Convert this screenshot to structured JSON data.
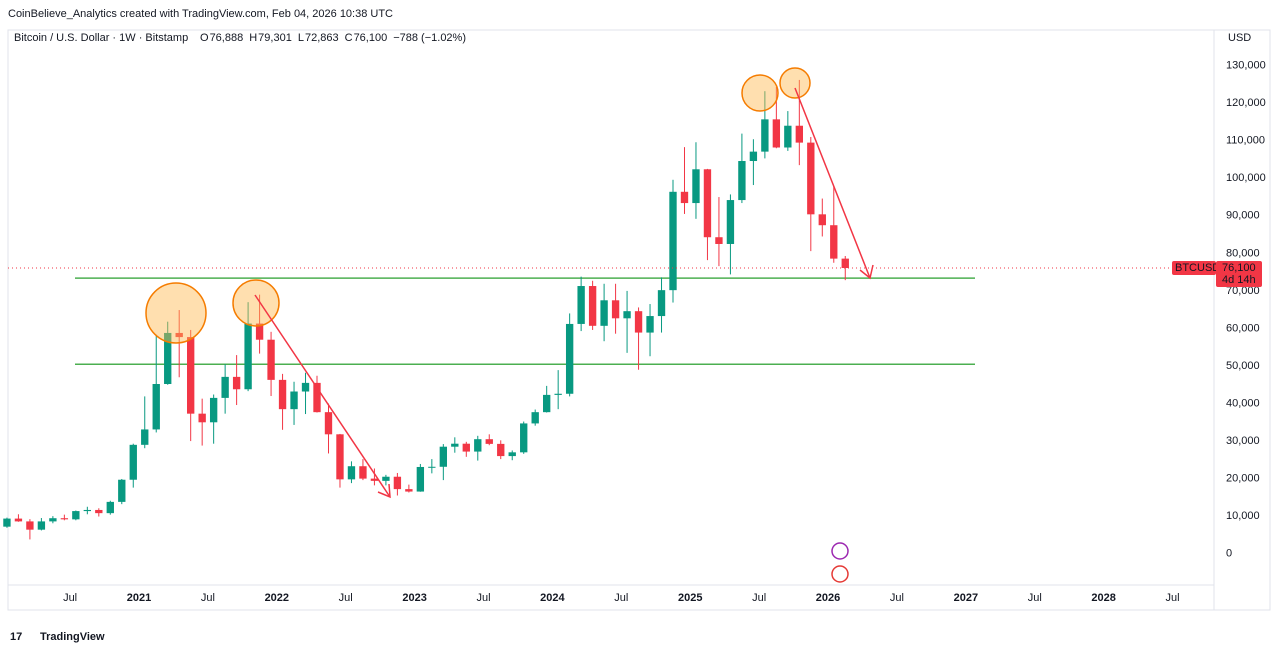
{
  "chart_data": {
    "type": "candlestick",
    "title": "CoinBelieve_Analytics created with TradingView.com, Feb 04, 2026 10:38 UTC",
    "subtitle": "Bitcoin / U.S. Dollar · 1W · Bitstamp",
    "ohlc_header": [
      {
        "key": "O",
        "value": "76,888"
      },
      {
        "key": "H",
        "value": "79,301"
      },
      {
        "key": "L",
        "value": "72,863"
      },
      {
        "key": "C",
        "value": "76,100"
      }
    ],
    "change": "−788 (−1.02%)",
    "currency": "USD",
    "brand": "TradingView",
    "up_color": "#089981",
    "down_color": "#f23645",
    "level_color": "#4caf50",
    "x": [
      "2020-01",
      "2020-02",
      "2020-03",
      "2020-04",
      "2020-05",
      "2020-06",
      "2020-07",
      "2020-08",
      "2020-09",
      "2020-10",
      "2020-11",
      "2020-12",
      "2021-01",
      "2021-02",
      "2021-03",
      "2021-04",
      "2021-05",
      "2021-06",
      "2021-07",
      "2021-08",
      "2021-09",
      "2021-10",
      "2021-11",
      "2021-12",
      "2022-01",
      "2022-02",
      "2022-03",
      "2022-04",
      "2022-05",
      "2022-06",
      "2022-07",
      "2022-08",
      "2022-09",
      "2022-10",
      "2022-11",
      "2022-12",
      "2023-01",
      "2023-02",
      "2023-03",
      "2023-04",
      "2023-05",
      "2023-06",
      "2023-07",
      "2023-08",
      "2023-09",
      "2023-10",
      "2023-11",
      "2023-12",
      "2024-01",
      "2024-02",
      "2024-03",
      "2024-04",
      "2024-05",
      "2024-06",
      "2024-07",
      "2024-08",
      "2024-09",
      "2024-10",
      "2024-11",
      "2024-12",
      "2025-01",
      "2025-02",
      "2025-03",
      "2025-04",
      "2025-05",
      "2025-06",
      "2025-07",
      "2025-08",
      "2025-09",
      "2025-10",
      "2025-11",
      "2025-12",
      "2026-01",
      "2026-02"
    ],
    "open": [
      7200,
      9350,
      8600,
      6400,
      8600,
      9450,
      9150,
      11350,
      11650,
      10800,
      13800,
      19700,
      29000,
      33100,
      45200,
      58800,
      57700,
      37300,
      35000,
      41500,
      47100,
      43800,
      61300,
      57000,
      46300,
      38500,
      43200,
      45500,
      37700,
      31800,
      19800,
      23300,
      20000,
      19400,
      20500,
      17200,
      16550,
      23100,
      23150,
      28500,
      29300,
      27200,
      30500,
      29250,
      26000,
      27000,
      34700,
      37700,
      42300,
      42600,
      61200,
      71300,
      60700,
      67500,
      62700,
      64600,
      58900,
      63300,
      70200,
      96400,
      93400,
      102400,
      84300,
      82500,
      94200,
      104600,
      107100,
      115700,
      108200,
      114000,
      109500,
      90400,
      87500,
      78600
    ],
    "high": [
      9600,
      10500,
      9200,
      9500,
      10000,
      10400,
      11500,
      12500,
      12100,
      14100,
      19900,
      29300,
      41900,
      58300,
      61800,
      64900,
      59600,
      41300,
      42400,
      50500,
      52900,
      67000,
      69000,
      59100,
      47900,
      45800,
      48200,
      47400,
      40000,
      31900,
      24600,
      25200,
      22700,
      21000,
      21500,
      18400,
      23900,
      25200,
      29200,
      31000,
      29800,
      31400,
      31800,
      30200,
      27500,
      35200,
      38400,
      44700,
      48900,
      64000,
      73800,
      72700,
      71900,
      71900,
      70000,
      65600,
      66500,
      73600,
      99600,
      108300,
      109600,
      102500,
      95000,
      95700,
      111900,
      110400,
      123200,
      124400,
      117900,
      126200,
      111000,
      94600,
      97900,
      79300
    ],
    "low": [
      6900,
      8500,
      3800,
      6200,
      8100,
      8900,
      8900,
      10500,
      9900,
      10400,
      13200,
      17600,
      28100,
      32300,
      45000,
      47000,
      30000,
      28800,
      29300,
      37300,
      39600,
      43300,
      53300,
      42000,
      33000,
      34300,
      37200,
      37600,
      26700,
      17600,
      18800,
      19600,
      18200,
      18200,
      15500,
      16300,
      16500,
      21400,
      19600,
      26900,
      25800,
      24800,
      28900,
      25200,
      24900,
      26600,
      34100,
      37600,
      38500,
      41900,
      59300,
      59600,
      56600,
      58600,
      53500,
      49000,
      52600,
      58900,
      66900,
      90500,
      89200,
      78200,
      76600,
      74400,
      93400,
      98200,
      105300,
      108000,
      107300,
      103500,
      80600,
      84500,
      77500,
      72863
    ],
    "close": [
      9350,
      8600,
      6400,
      8600,
      9450,
      9150,
      11350,
      11650,
      10800,
      13800,
      19700,
      29000,
      33100,
      45200,
      58800,
      57700,
      37300,
      35000,
      41500,
      47100,
      43800,
      61300,
      57000,
      46300,
      38500,
      43200,
      45500,
      37700,
      31800,
      19800,
      23300,
      20000,
      19400,
      20500,
      17200,
      16550,
      23100,
      23150,
      28500,
      29300,
      27200,
      30500,
      29250,
      26000,
      27000,
      34700,
      37700,
      42300,
      42600,
      61200,
      71300,
      60700,
      67500,
      62700,
      64600,
      58900,
      63300,
      70200,
      96400,
      93400,
      102400,
      84300,
      82500,
      94200,
      104600,
      107100,
      115700,
      108200,
      114000,
      109500,
      90400,
      87500,
      78600,
      76100
    ],
    "levels": [
      73400,
      50450
    ],
    "last_price": {
      "value": 76100,
      "label": "76,100",
      "symbol": "BTCUSD",
      "countdown": "4d 14h"
    },
    "xlim": [
      "2020-01",
      "2028-10"
    ],
    "xticks": [
      {
        "value": "2020-07",
        "label": "Jul"
      },
      {
        "value": "2021-01",
        "label": "2021"
      },
      {
        "value": "2021-07",
        "label": "Jul"
      },
      {
        "value": "2022-01",
        "label": "2022"
      },
      {
        "value": "2022-07",
        "label": "Jul"
      },
      {
        "value": "2023-01",
        "label": "2023"
      },
      {
        "value": "2023-07",
        "label": "Jul"
      },
      {
        "value": "2024-01",
        "label": "2024"
      },
      {
        "value": "2024-07",
        "label": "Jul"
      },
      {
        "value": "2025-01",
        "label": "2025"
      },
      {
        "value": "2025-07",
        "label": "Jul"
      },
      {
        "value": "2026-01",
        "label": "2026"
      },
      {
        "value": "2026-07",
        "label": "Jul"
      },
      {
        "value": "2027-01",
        "label": "2027"
      },
      {
        "value": "2027-07",
        "label": "Jul"
      },
      {
        "value": "2028-01",
        "label": "2028"
      },
      {
        "value": "2028-07",
        "label": "Jul"
      }
    ],
    "ylim": [
      -15000,
      139500
    ],
    "yticks": [
      0,
      {
        "value": 10000,
        "label": "10,000"
      },
      {
        "value": 20000,
        "label": "20,000"
      },
      {
        "value": 30000,
        "label": "30,000"
      },
      {
        "value": 40000,
        "label": "40,000"
      },
      {
        "value": 50000,
        "label": "50,000"
      },
      {
        "value": 60000,
        "label": "60,000"
      },
      {
        "value": 70000,
        "label": "70,000"
      },
      {
        "value": 80000,
        "label": "80,000"
      },
      {
        "value": 90000,
        "label": "90,000"
      },
      {
        "value": 100000,
        "label": "100,000"
      },
      {
        "value": 110000,
        "label": "110,000"
      },
      {
        "value": 120000,
        "label": "120,000"
      },
      {
        "value": 130000,
        "label": "130,000"
      }
    ]
  }
}
